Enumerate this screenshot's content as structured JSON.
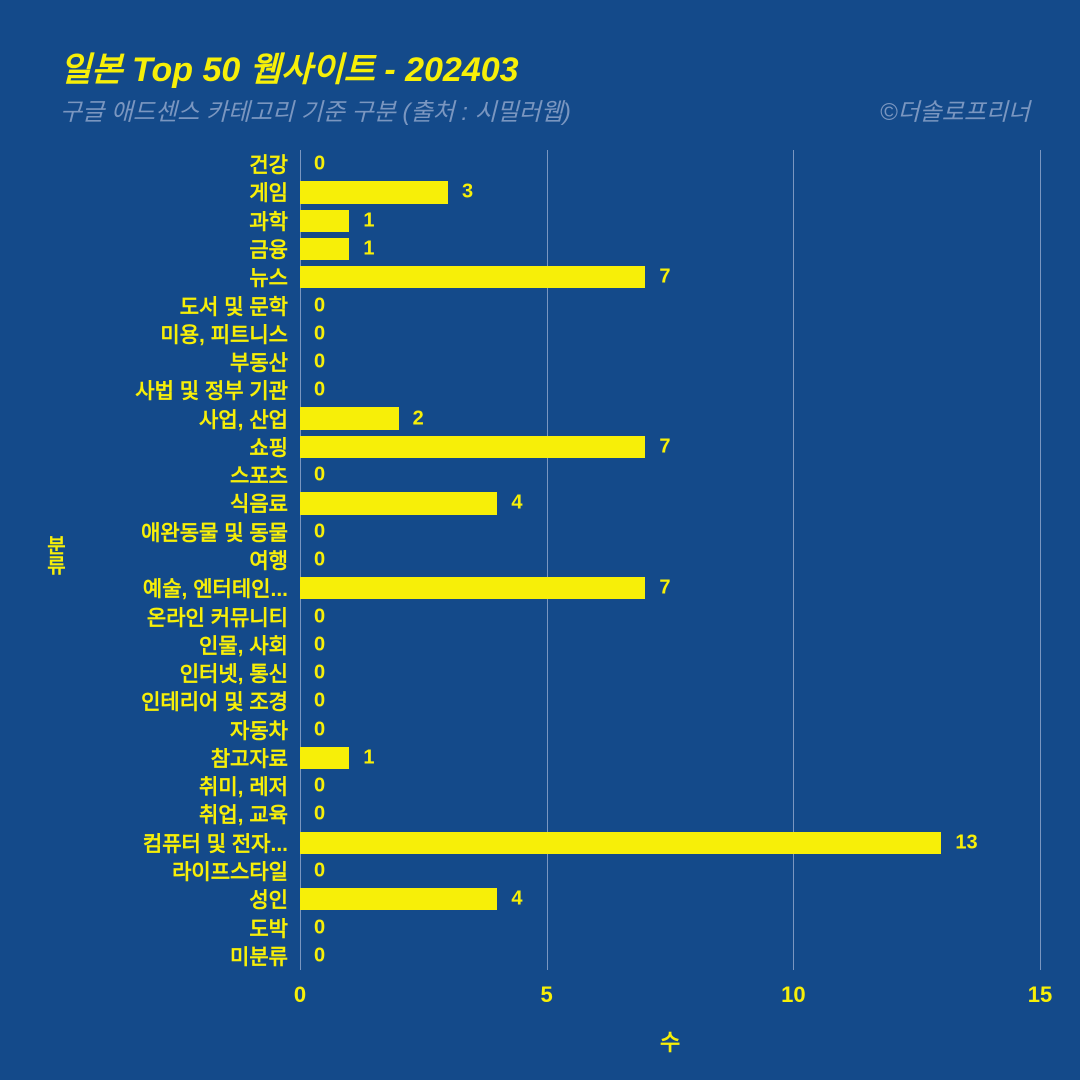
{
  "title": "일본 Top 50 웹사이트 - 202403",
  "subtitle": "구글 애드센스 카테고리 기준 구분 (출처 : 시밀러웹)",
  "credit": "©더솔로프리너",
  "chart": {
    "type": "bar-horizontal",
    "background_color": "#144a8a",
    "bar_color": "#f7ef08",
    "text_color": "#f7ef08",
    "grid_color": "#7a96c0",
    "subtitle_color": "#7a96c0",
    "title_fontsize": 34,
    "subtitle_fontsize": 24,
    "label_fontsize": 21,
    "value_fontsize": 20,
    "tick_fontsize": 22,
    "xlim": [
      0,
      15
    ],
    "xticks": [
      0,
      5,
      10,
      15
    ],
    "x_axis_label": "수",
    "y_axis_label": "분류",
    "categories": [
      {
        "label": "건강",
        "value": 0
      },
      {
        "label": "게임",
        "value": 3
      },
      {
        "label": "과학",
        "value": 1
      },
      {
        "label": "금융",
        "value": 1
      },
      {
        "label": "뉴스",
        "value": 7
      },
      {
        "label": "도서 및 문학",
        "value": 0
      },
      {
        "label": "미용, 피트니스",
        "value": 0
      },
      {
        "label": "부동산",
        "value": 0
      },
      {
        "label": "사법 및 정부 기관",
        "value": 0
      },
      {
        "label": "사업, 산업",
        "value": 2
      },
      {
        "label": "쇼핑",
        "value": 7
      },
      {
        "label": "스포츠",
        "value": 0
      },
      {
        "label": "식음료",
        "value": 4
      },
      {
        "label": "애완동물 및 동물",
        "value": 0
      },
      {
        "label": "여행",
        "value": 0
      },
      {
        "label": "예술, 엔터테인...",
        "value": 7
      },
      {
        "label": "온라인 커뮤니티",
        "value": 0
      },
      {
        "label": "인물, 사회",
        "value": 0
      },
      {
        "label": "인터넷, 통신",
        "value": 0
      },
      {
        "label": "인테리어 및 조경",
        "value": 0
      },
      {
        "label": "자동차",
        "value": 0
      },
      {
        "label": "참고자료",
        "value": 1
      },
      {
        "label": "취미, 레저",
        "value": 0
      },
      {
        "label": "취업, 교육",
        "value": 0
      },
      {
        "label": "컴퓨터 및 전자...",
        "value": 13
      },
      {
        "label": "라이프스타일",
        "value": 0
      },
      {
        "label": "성인",
        "value": 4
      },
      {
        "label": "도박",
        "value": 0
      },
      {
        "label": "미분류",
        "value": 0
      }
    ]
  }
}
